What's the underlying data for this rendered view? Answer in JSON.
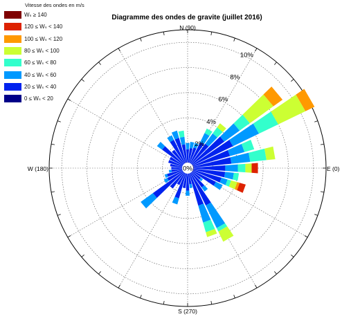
{
  "chart_data": {
    "type": "polar-bar",
    "title": "Diagramme des ondes de gravite (juillet 2016)",
    "direction_labels": {
      "north": "N (90)",
      "east": "E (0)",
      "south": "S (270)",
      "west": "W (180)"
    },
    "radial_ticks": [
      "0%",
      "2%",
      "4%",
      "6%",
      "8%",
      "10%"
    ],
    "radial_max": 11,
    "legend": {
      "title": "Vitesse des ondes en m/s",
      "entries": [
        {
          "label": "Wₛ ≥ 140",
          "color": "#7f0000"
        },
        {
          "label": "120 ≤ Wₛ < 140",
          "color": "#dd2200"
        },
        {
          "label": "100 ≤ Wₛ < 120",
          "color": "#ff9900"
        },
        {
          "label": "80 ≤ Wₛ < 100",
          "color": "#ccff33"
        },
        {
          "label": "60 ≤ Wₛ < 80",
          "color": "#33ffcc"
        },
        {
          "label": "40 ≤ Wₛ < 60",
          "color": "#0099ff"
        },
        {
          "label": "20 ≤ Wₛ < 40",
          "color": "#0022ee"
        },
        {
          "label": "0 ≤ Wₛ < 20",
          "color": "#000088"
        }
      ]
    },
    "bin_colors": [
      "#000088",
      "#0022ee",
      "#0099ff",
      "#33ffcc",
      "#ccff33",
      "#ff9900",
      "#dd2200",
      "#7f0000"
    ],
    "sectors": [
      {
        "direction": 0,
        "stack": [
          0.5,
          2.5,
          1.0,
          0.6,
          0.5,
          0,
          0.5
        ]
      },
      {
        "direction": 10,
        "stack": [
          0.5,
          3.0,
          1.5,
          1.3,
          0.7
        ]
      },
      {
        "direction": 20,
        "stack": [
          0.5,
          3.0,
          1.2,
          0.8
        ]
      },
      {
        "direction": 30,
        "stack": [
          0.5,
          3.5,
          2.3,
          1.7,
          2.4,
          0.8
        ]
      },
      {
        "direction": 40,
        "stack": [
          0.4,
          3.2,
          1.5,
          1.0,
          2.3,
          0.9
        ]
      },
      {
        "direction": 50,
        "stack": [
          0.4,
          2.0,
          1.0,
          0.6,
          0.4
        ]
      },
      {
        "direction": 60,
        "stack": [
          0.4,
          1.9,
          0.8,
          0.4
        ]
      },
      {
        "direction": 70,
        "stack": [
          0.4,
          1.3,
          0.4
        ]
      },
      {
        "direction": 80,
        "stack": [
          0.4,
          1.2,
          0.5
        ]
      },
      {
        "direction": 90,
        "stack": [
          0.5,
          1.0,
          0.5
        ]
      },
      {
        "direction": 100,
        "stack": [
          0.4,
          1.5,
          0.6,
          0.5
        ]
      },
      {
        "direction": 110,
        "stack": [
          0.5,
          2.0,
          0.6
        ]
      },
      {
        "direction": 120,
        "stack": [
          0.3,
          2.2,
          0.4
        ]
      },
      {
        "direction": 130,
        "stack": [
          0.4,
          1.4
        ]
      },
      {
        "direction": 140,
        "stack": [
          0.4,
          2.1,
          0.5
        ]
      },
      {
        "direction": 150,
        "stack": [
          0.4,
          1.2
        ]
      },
      {
        "direction": 160,
        "stack": [
          0.3,
          1.3
        ]
      },
      {
        "direction": 170,
        "stack": [
          0.3,
          1.1
        ]
      },
      {
        "direction": 180,
        "stack": [
          0.3,
          1.0
        ]
      },
      {
        "direction": 190,
        "stack": [
          0.3,
          1.0,
          0.2
        ]
      },
      {
        "direction": 200,
        "stack": [
          0.4,
          1.3,
          0.2
        ]
      },
      {
        "direction": 210,
        "stack": [
          0.3,
          1.5,
          0.3
        ]
      },
      {
        "direction": 220,
        "stack": [
          0.4,
          3.0,
          1.2
        ]
      },
      {
        "direction": 230,
        "stack": [
          0.4,
          1.6
        ]
      },
      {
        "direction": 240,
        "stack": [
          0.3,
          1.2
        ]
      },
      {
        "direction": 250,
        "stack": [
          0.3,
          2.2,
          0.5
        ]
      },
      {
        "direction": 260,
        "stack": [
          0.4,
          1.2
        ]
      },
      {
        "direction": 270,
        "stack": [
          0.4,
          1.4,
          0.4
        ]
      },
      {
        "direction": 280,
        "stack": [
          0.3,
          1.0,
          0.3
        ]
      },
      {
        "direction": 290,
        "stack": [
          0.4,
          2.7,
          1.4,
          0.8,
          0.4
        ]
      },
      {
        "direction": 300,
        "stack": [
          0.3,
          3.0,
          2.0,
          0.3,
          0.9
        ]
      },
      {
        "direction": 310,
        "stack": [
          0.4,
          1.5,
          0.4
        ]
      },
      {
        "direction": 320,
        "stack": [
          0.3,
          1.0,
          0.2
        ]
      },
      {
        "direction": 330,
        "stack": [
          0.5,
          2.0,
          0.6
        ]
      },
      {
        "direction": 340,
        "stack": [
          0.5,
          2.3,
          0.5,
          0.3,
          0.5,
          0.2,
          0.5
        ]
      },
      {
        "direction": 350,
        "stack": [
          0.5,
          2.5,
          0.7,
          0.4
        ]
      }
    ]
  }
}
